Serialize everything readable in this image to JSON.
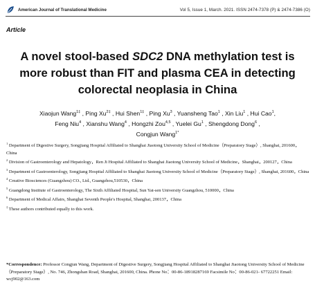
{
  "header": {
    "journal": "American Journal of Translational Medicine",
    "issue": "Vol 5, Issue 1, March. 2021.   ISSN 2474-7378 (P) & 2474-7386 (O)",
    "logo_icon": "journal-leaf-logo"
  },
  "section_label": "Article",
  "title": {
    "part1": "A novel stool-based ",
    "gene": "SDC2",
    "part2": " DNA methylation test is more robust than FIT and plasma CEA in detecting colorectal neoplasia in China"
  },
  "authors": [
    {
      "name": "Xiaojun Wang",
      "sup": "1‡"
    },
    {
      "name": "Ping Xu",
      "sup": "2‡"
    },
    {
      "name": "Hui Shen",
      "sup": "1‡"
    },
    {
      "name": "Ping Xu",
      "sup": "3"
    },
    {
      "name": "Yuansheng Tao",
      "sup": "1"
    },
    {
      "name": "Xin Liu",
      "sup": "1"
    },
    {
      "name": "Hui Cao",
      "sup": "1"
    },
    {
      "name": "Feng Niu",
      "sup": "4"
    },
    {
      "name": "Xianshu Wang",
      "sup": "4"
    },
    {
      "name": "Hongzhi Zou",
      "sup": "4,5"
    },
    {
      "name": "Yuelei Gu",
      "sup": "1"
    },
    {
      "name": "Shengdong Dong",
      "sup": "6"
    },
    {
      "name": "Congjun Wang",
      "sup": "1*"
    }
  ],
  "affiliations": [
    {
      "sup": "1",
      "text": "Department of Digestive Surgery, Songjiang Hospital Affiliated to Shanghai Jiaotong University School of Medicine（Preparatory Stage）, Shanghai, 201600，China"
    },
    {
      "sup": "2",
      "text": "Division of Gastroenterology and Hepatology，Ren Ji Hospital Affiliated to Shanghai Jiaotong University School of Medicine，Shanghai，200127，China"
    },
    {
      "sup": "3",
      "text": "Department of Gastroenterology, Songjiang Hospital Affiliated to Shanghai Jiaotong University School of Medicine（Preparatory Stage）, Shanghai, 201600，China"
    },
    {
      "sup": "4",
      "text": "Creative Biosciences (Guangzhou) CO., Ltd., Guangzhou,510530，China"
    },
    {
      "sup": "5",
      "text": "Guangdong Institute of Gastroenterology, The Sixth Affiliated Hospital, Sun Yat-sen University Guangzhou, 510000，China"
    },
    {
      "sup": "6",
      "text": "Department of Medical Affairs, Shanghai Seventh People's Hospital, Shanghai, 200137，China"
    },
    {
      "sup": "‡",
      "text": "These authors contributed equally to this work."
    }
  ],
  "correspondence": {
    "label": "*Correspondence:",
    "text": " Professor Congjun Wang, Department of Digestive Surgery, Songjiang Hospital Affiliated to Shanghai Jiaotong University School of Medicine（Preparatory Stage）, No. 746, Zhongshan Road, Shanghai, 201600, China. Phone No：00-86-18918287169 Facsimile No：00-86-021- 67722251 Email: wcj902@163.com"
  }
}
